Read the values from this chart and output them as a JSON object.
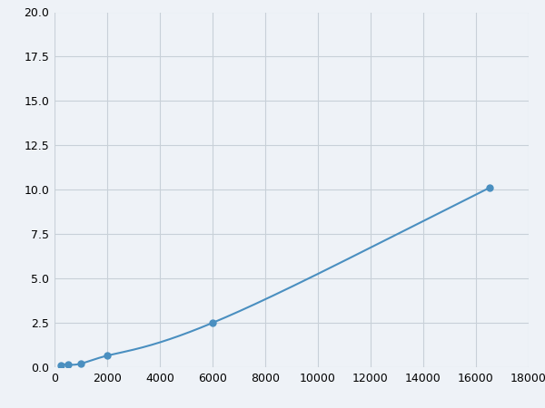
{
  "x_points": [
    250,
    500,
    1000,
    2000,
    6000,
    16500
  ],
  "y_points": [
    0.08,
    0.15,
    0.2,
    0.65,
    2.5,
    10.1
  ],
  "line_color": "#4a8fc0",
  "marker_color": "#4a8fc0",
  "marker_size": 5,
  "line_width": 1.5,
  "xlim": [
    0,
    18000
  ],
  "ylim": [
    0,
    20
  ],
  "xticks": [
    0,
    2000,
    4000,
    6000,
    8000,
    10000,
    12000,
    14000,
    16000,
    18000
  ],
  "yticks": [
    0.0,
    2.5,
    5.0,
    7.5,
    10.0,
    12.5,
    15.0,
    17.5,
    20.0
  ],
  "grid_color": "#c8d0d8",
  "bg_color": "#eef2f7",
  "fig_bg_color": "#eef2f7"
}
